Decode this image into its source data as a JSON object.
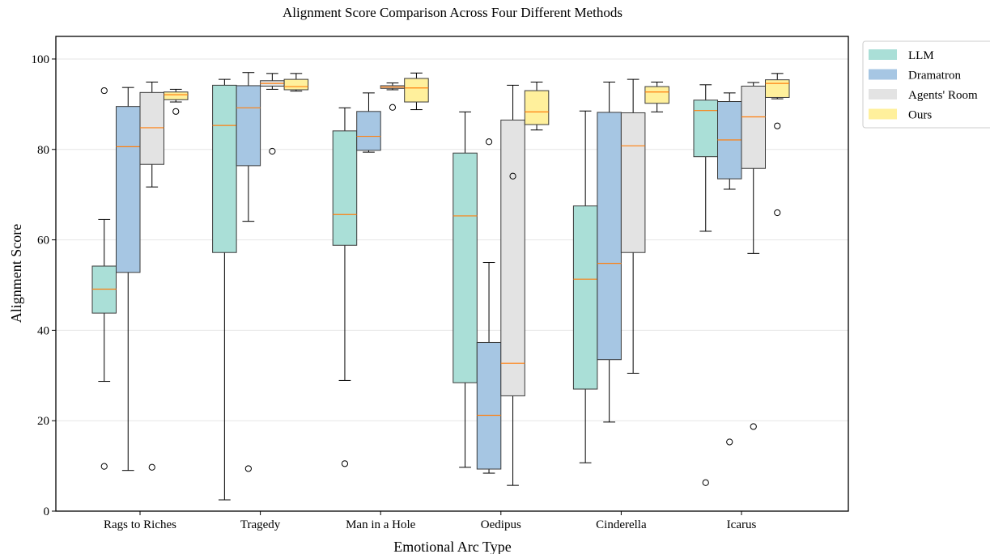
{
  "chart_data": {
    "type": "box",
    "title": "Alignment Score Comparison Across Four Different Methods",
    "xlabel": "Emotional Arc Type",
    "ylabel": "Alignment Score",
    "ylim": [
      0,
      105
    ],
    "yticks": [
      0,
      20,
      40,
      60,
      80,
      100
    ],
    "grid": "horizontal",
    "legend_position": "outside-top-right",
    "categories": [
      "Rags to Riches",
      "Tragedy",
      "Man in a Hole",
      "Oedipus",
      "Cinderella",
      "Icarus"
    ],
    "colors": {
      "median": "#ff7f0e"
    },
    "series": [
      {
        "name": "LLM",
        "color": "#aadfd7",
        "boxes": [
          {
            "whislo": 28.7,
            "q1": 43.8,
            "med": 49.1,
            "q3": 54.2,
            "whishi": 64.5,
            "fliers": [
              93.0,
              9.9
            ]
          },
          {
            "whislo": 2.5,
            "q1": 57.2,
            "med": 85.3,
            "q3": 94.2,
            "whishi": 95.5,
            "fliers": []
          },
          {
            "whislo": 28.9,
            "q1": 58.8,
            "med": 65.6,
            "q3": 84.1,
            "whishi": 89.2,
            "fliers": [
              10.5
            ]
          },
          {
            "whislo": 9.7,
            "q1": 28.4,
            "med": 65.3,
            "q3": 79.2,
            "whishi": 88.3,
            "fliers": []
          },
          {
            "whislo": 10.7,
            "q1": 27.0,
            "med": 51.3,
            "q3": 67.5,
            "whishi": 88.5,
            "fliers": []
          },
          {
            "whislo": 61.9,
            "q1": 78.4,
            "med": 88.6,
            "q3": 90.9,
            "whishi": 94.3,
            "fliers": [
              6.3
            ]
          }
        ]
      },
      {
        "name": "Dramatron",
        "color": "#a6c6e3",
        "boxes": [
          {
            "whislo": 9.0,
            "q1": 52.8,
            "med": 80.6,
            "q3": 89.5,
            "whishi": 93.7,
            "fliers": []
          },
          {
            "whislo": 64.1,
            "q1": 76.4,
            "med": 89.2,
            "q3": 94.1,
            "whishi": 97.0,
            "fliers": [
              9.4
            ]
          },
          {
            "whislo": 79.4,
            "q1": 79.8,
            "med": 82.9,
            "q3": 88.4,
            "whishi": 92.5,
            "fliers": []
          },
          {
            "whislo": 8.4,
            "q1": 9.3,
            "med": 21.2,
            "q3": 37.3,
            "whishi": 55.0,
            "fliers": [
              81.7
            ]
          },
          {
            "whislo": 19.7,
            "q1": 33.5,
            "med": 54.8,
            "q3": 88.2,
            "whishi": 94.9,
            "fliers": []
          },
          {
            "whislo": 71.2,
            "q1": 73.5,
            "med": 82.1,
            "q3": 90.6,
            "whishi": 92.5,
            "fliers": [
              15.3
            ]
          }
        ]
      },
      {
        "name": "Agents' Room",
        "color": "#e3e3e3",
        "boxes": [
          {
            "whislo": 71.7,
            "q1": 76.7,
            "med": 84.8,
            "q3": 92.6,
            "whishi": 94.9,
            "fliers": [
              9.7
            ]
          },
          {
            "whislo": 93.3,
            "q1": 94.0,
            "med": 94.6,
            "q3": 95.2,
            "whishi": 96.8,
            "fliers": [
              79.6
            ]
          },
          {
            "whislo": 93.2,
            "q1": 93.5,
            "med": 93.8,
            "q3": 94.1,
            "whishi": 94.7,
            "fliers": [
              89.3
            ]
          },
          {
            "whislo": 5.7,
            "q1": 25.5,
            "med": 32.7,
            "q3": 86.5,
            "whishi": 94.2,
            "fliers": [
              74.1
            ]
          },
          {
            "whislo": 30.5,
            "q1": 57.2,
            "med": 80.8,
            "q3": 88.1,
            "whishi": 95.5,
            "fliers": []
          },
          {
            "whislo": 57.0,
            "q1": 75.8,
            "med": 87.2,
            "q3": 94.0,
            "whishi": 94.8,
            "fliers": [
              18.7
            ]
          }
        ]
      },
      {
        "name": "Ours",
        "color": "#fff09c",
        "boxes": [
          {
            "whislo": 90.5,
            "q1": 91.0,
            "med": 92.1,
            "q3": 92.7,
            "whishi": 93.3,
            "fliers": [
              88.4
            ]
          },
          {
            "whislo": 92.9,
            "q1": 93.2,
            "med": 93.9,
            "q3": 95.5,
            "whishi": 96.8,
            "fliers": []
          },
          {
            "whislo": 88.8,
            "q1": 90.5,
            "med": 93.6,
            "q3": 95.7,
            "whishi": 96.9,
            "fliers": []
          },
          {
            "whislo": 84.3,
            "q1": 85.5,
            "med": 88.3,
            "q3": 93.0,
            "whishi": 94.9,
            "fliers": []
          },
          {
            "whislo": 88.3,
            "q1": 90.2,
            "med": 92.7,
            "q3": 93.9,
            "whishi": 94.9,
            "fliers": []
          },
          {
            "whislo": 91.2,
            "q1": 91.5,
            "med": 94.6,
            "q3": 95.4,
            "whishi": 96.8,
            "fliers": [
              85.2,
              66.0
            ]
          }
        ]
      }
    ]
  }
}
